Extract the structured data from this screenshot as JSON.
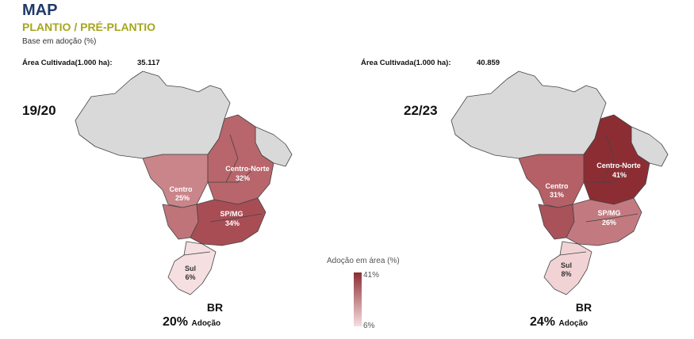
{
  "header": {
    "title": "MAP",
    "subtitle": "PLANTIO / PRÉ-PLANTIO",
    "base_note": "Base em adoção (%)"
  },
  "legend": {
    "title": "Adoção em área (%)",
    "max": "41%",
    "min": "6%",
    "color_max": "#8c2d34",
    "color_min": "#f6dfe1"
  },
  "maps": [
    {
      "period": "19/20",
      "area_label": "Área Cultivada(1.000 ha):",
      "area_value": "35.117",
      "br_label": "BR",
      "br_pct": "20%",
      "br_word": "Adoção",
      "regions": {
        "centro_norte": {
          "name": "Centro-Norte",
          "pct": "32%",
          "color": "#b8656b"
        },
        "centro": {
          "name": "Centro",
          "pct": "25%",
          "color": "#c98589"
        },
        "sp_mg": {
          "name": "SP/MG",
          "pct": "34%",
          "color": "#a94d55"
        },
        "sul": {
          "name": "Sul",
          "pct": "6%",
          "color": "#f6dfe1"
        }
      }
    },
    {
      "period": "22/23",
      "area_label": "Área Cultivada(1.000 ha):",
      "area_value": "40.859",
      "br_label": "BR",
      "br_pct": "24%",
      "br_word": "Adoção",
      "regions": {
        "centro_norte": {
          "name": "Centro-Norte",
          "pct": "41%",
          "color": "#8c2d34"
        },
        "centro": {
          "name": "Centro",
          "pct": "31%",
          "color": "#b55f66"
        },
        "sp_mg": {
          "name": "SP/MG",
          "pct": "26%",
          "color": "#c27a80"
        },
        "sul": {
          "name": "Sul",
          "pct": "8%",
          "color": "#f1d3d6"
        }
      }
    }
  ]
}
